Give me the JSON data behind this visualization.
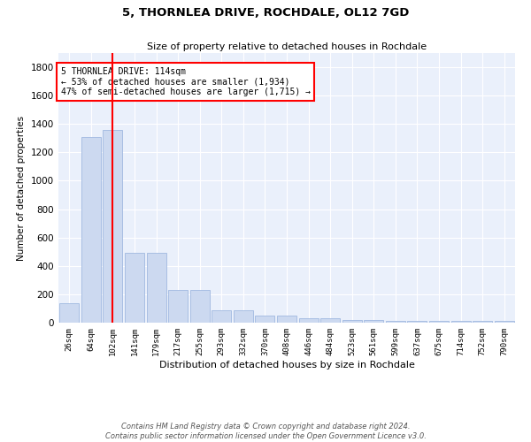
{
  "title": "5, THORNLEA DRIVE, ROCHDALE, OL12 7GD",
  "subtitle": "Size of property relative to detached houses in Rochdale",
  "xlabel": "Distribution of detached houses by size in Rochdale",
  "ylabel": "Number of detached properties",
  "bar_labels": [
    "26sqm",
    "64sqm",
    "102sqm",
    "141sqm",
    "179sqm",
    "217sqm",
    "255sqm",
    "293sqm",
    "332sqm",
    "370sqm",
    "408sqm",
    "446sqm",
    "484sqm",
    "523sqm",
    "561sqm",
    "599sqm",
    "637sqm",
    "675sqm",
    "714sqm",
    "752sqm",
    "790sqm"
  ],
  "bar_values": [
    140,
    1310,
    1360,
    490,
    490,
    230,
    230,
    90,
    90,
    50,
    50,
    30,
    30,
    20,
    20,
    15,
    15,
    10,
    10,
    10,
    10
  ],
  "bar_color": "#ccd9f0",
  "bar_edgecolor": "#a0b8e0",
  "vline_x_index": 2,
  "vline_color": "red",
  "annotation_text": "5 THORNLEA DRIVE: 114sqm\n← 53% of detached houses are smaller (1,934)\n47% of semi-detached houses are larger (1,715) →",
  "annotation_box_color": "white",
  "annotation_box_edgecolor": "red",
  "ylim": [
    0,
    1900
  ],
  "yticks": [
    0,
    200,
    400,
    600,
    800,
    1000,
    1200,
    1400,
    1600,
    1800
  ],
  "background_color": "#eaf0fb",
  "grid_color": "white",
  "footer_line1": "Contains HM Land Registry data © Crown copyright and database right 2024.",
  "footer_line2": "Contains public sector information licensed under the Open Government Licence v3.0."
}
